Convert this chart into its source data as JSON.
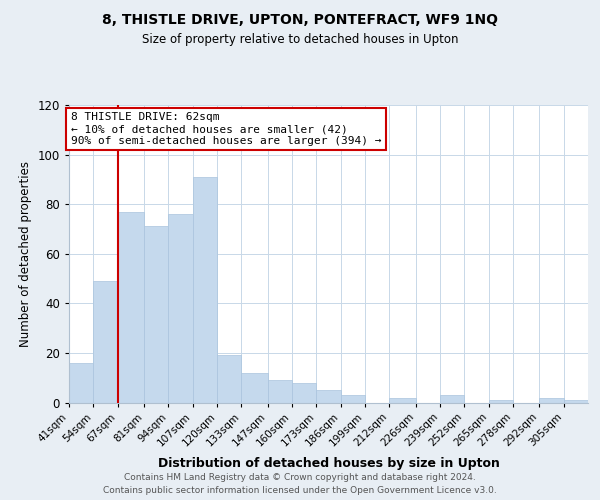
{
  "title": "8, THISTLE DRIVE, UPTON, PONTEFRACT, WF9 1NQ",
  "subtitle": "Size of property relative to detached houses in Upton",
  "xlabel": "Distribution of detached houses by size in Upton",
  "ylabel": "Number of detached properties",
  "bar_labels": [
    "41sqm",
    "54sqm",
    "67sqm",
    "81sqm",
    "94sqm",
    "107sqm",
    "120sqm",
    "133sqm",
    "147sqm",
    "160sqm",
    "173sqm",
    "186sqm",
    "199sqm",
    "212sqm",
    "226sqm",
    "239sqm",
    "252sqm",
    "265sqm",
    "278sqm",
    "292sqm",
    "305sqm"
  ],
  "bar_heights": [
    16,
    49,
    77,
    71,
    76,
    91,
    19,
    12,
    9,
    8,
    5,
    3,
    0,
    2,
    0,
    3,
    0,
    1,
    0,
    2,
    1
  ],
  "bar_color": "#c5d9ed",
  "bar_edge_color": "#aac4de",
  "ylim": [
    0,
    120
  ],
  "yticks": [
    0,
    20,
    40,
    60,
    80,
    100,
    120
  ],
  "property_line_x": 67,
  "property_line_label": "8 THISTLE DRIVE: 62sqm",
  "annotation_line1": "← 10% of detached houses are smaller (42)",
  "annotation_line2": "90% of semi-detached houses are larger (394) →",
  "annotation_box_color": "#ffffff",
  "annotation_box_edge": "#cc0000",
  "property_line_color": "#cc0000",
  "footer_line1": "Contains HM Land Registry data © Crown copyright and database right 2024.",
  "footer_line2": "Contains public sector information licensed under the Open Government Licence v3.0.",
  "background_color": "#e8eef4",
  "plot_background": "#ffffff",
  "bin_edges": [
    41,
    54,
    67,
    81,
    94,
    107,
    120,
    133,
    147,
    160,
    173,
    186,
    199,
    212,
    226,
    239,
    252,
    265,
    278,
    292,
    305,
    318
  ]
}
